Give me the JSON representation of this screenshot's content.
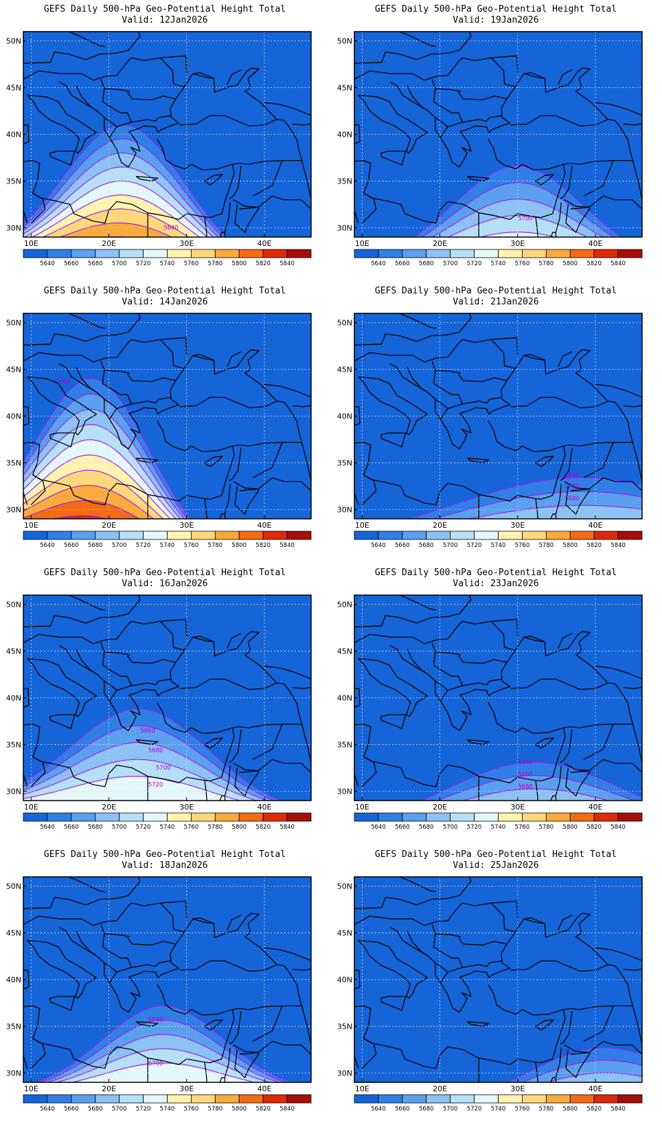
{
  "title_line1": "GEFS Daily 500-hPa Geo-Potential Height Total",
  "valid_prefix": "Valid: ",
  "colors": {
    "background": "#1565d8",
    "contour": "#a020f0",
    "coast": "#000000",
    "grid": "#d0d8f0"
  },
  "colorbar": {
    "labels": [
      "5640",
      "5660",
      "5680",
      "5700",
      "5720",
      "5740",
      "5760",
      "5780",
      "5800",
      "5820",
      "5840"
    ],
    "colors": [
      "#1565d8",
      "#2f7fe6",
      "#5aa0ee",
      "#8cc2f4",
      "#b6e0f7",
      "#e4f8fa",
      "#fff3b0",
      "#fdd77c",
      "#f9aa3c",
      "#f36b14",
      "#dd2a0a",
      "#a50f08"
    ]
  },
  "axes": {
    "lon_ticks": [
      {
        "value": 10,
        "label": "10E"
      },
      {
        "value": 20,
        "label": "20E"
      },
      {
        "value": 30,
        "label": "30E"
      },
      {
        "value": 40,
        "label": "40E"
      }
    ],
    "lat_ticks": [
      {
        "value": 30,
        "label": "30N"
      },
      {
        "value": 35,
        "label": "35N"
      },
      {
        "value": 40,
        "label": "40N"
      },
      {
        "value": 45,
        "label": "45N"
      },
      {
        "value": 50,
        "label": "50N"
      }
    ],
    "lon_range": [
      9,
      46
    ],
    "lat_range": [
      29,
      51
    ]
  },
  "panels": [
    {
      "date": "12Jan2026",
      "col": 0,
      "row": 0,
      "ridge": {
        "center_lon": 22,
        "center_lat": 26,
        "base_lat": 41,
        "width": 14,
        "steps": 9,
        "tilt": 0.35
      },
      "labels": [
        {
          "text": "5640",
          "lon": 28,
          "lat": 29.8
        }
      ]
    },
    {
      "date": "14Jan2026",
      "col": 0,
      "row": 1,
      "ridge": {
        "center_lon": 18,
        "center_lat": 26,
        "base_lat": 44,
        "width": 13,
        "steps": 10,
        "tilt": 0.6
      },
      "labels": [
        {
          "text": "5640",
          "lon": 14,
          "lat": 43.5
        }
      ]
    },
    {
      "date": "16Jan2026",
      "col": 0,
      "row": 2,
      "ridge": {
        "center_lon": 24,
        "center_lat": 28,
        "base_lat": 38.8,
        "width": 16,
        "steps": 5,
        "tilt": 0.15
      },
      "labels": [
        {
          "text": "5660",
          "lon": 25,
          "lat": 36.3
        },
        {
          "text": "5680",
          "lon": 26,
          "lat": 34.2
        },
        {
          "text": "5700",
          "lon": 27,
          "lat": 32.3
        },
        {
          "text": "5720",
          "lon": 26,
          "lat": 30.5
        }
      ]
    },
    {
      "date": "18Jan2026",
      "col": 0,
      "row": 3,
      "ridge": {
        "center_lon": 27,
        "center_lat": 28,
        "base_lat": 37.2,
        "width": 14,
        "steps": 5,
        "tilt": 0.0
      },
      "labels": [
        {
          "text": "5660",
          "lon": 26,
          "lat": 35.5
        },
        {
          "text": "5700",
          "lon": 26,
          "lat": 30.8
        }
      ]
    },
    {
      "date": "19Jan2026",
      "col": 1,
      "row": 0,
      "ridge": {
        "center_lon": 30,
        "center_lat": 26,
        "base_lat": 36.6,
        "width": 15,
        "steps": 5,
        "tilt": 0.0
      },
      "labels": [
        {
          "text": "5700",
          "lon": 31,
          "lat": 30.8
        }
      ]
    },
    {
      "date": "21Jan2026",
      "col": 1,
      "row": 1,
      "ridge": {
        "center_lon": 38,
        "center_lat": 26,
        "base_lat": 33.4,
        "width": 30,
        "steps": 4,
        "tilt": -0.05
      },
      "labels": [
        {
          "text": "5640",
          "lon": 37,
          "lat": 33.5
        },
        {
          "text": "5660",
          "lon": 37,
          "lat": 32.3
        },
        {
          "text": "5680",
          "lon": 37,
          "lat": 31.0
        }
      ]
    },
    {
      "date": "23Jan2026",
      "col": 1,
      "row": 2,
      "ridge": {
        "center_lon": 32,
        "center_lat": 26,
        "base_lat": 33.1,
        "width": 20,
        "steps": 4,
        "tilt": -0.05
      },
      "labels": [
        {
          "text": "5640",
          "lon": 31,
          "lat": 32.9
        },
        {
          "text": "5660",
          "lon": 31,
          "lat": 31.6
        },
        {
          "text": "5680",
          "lon": 31,
          "lat": 30.3
        }
      ]
    },
    {
      "date": "25Jan2026",
      "col": 1,
      "row": 3,
      "ridge": {
        "center_lon": 41,
        "center_lat": 26,
        "base_lat": 32.7,
        "width": 18,
        "steps": 4,
        "tilt": -0.1
      },
      "labels": []
    }
  ]
}
